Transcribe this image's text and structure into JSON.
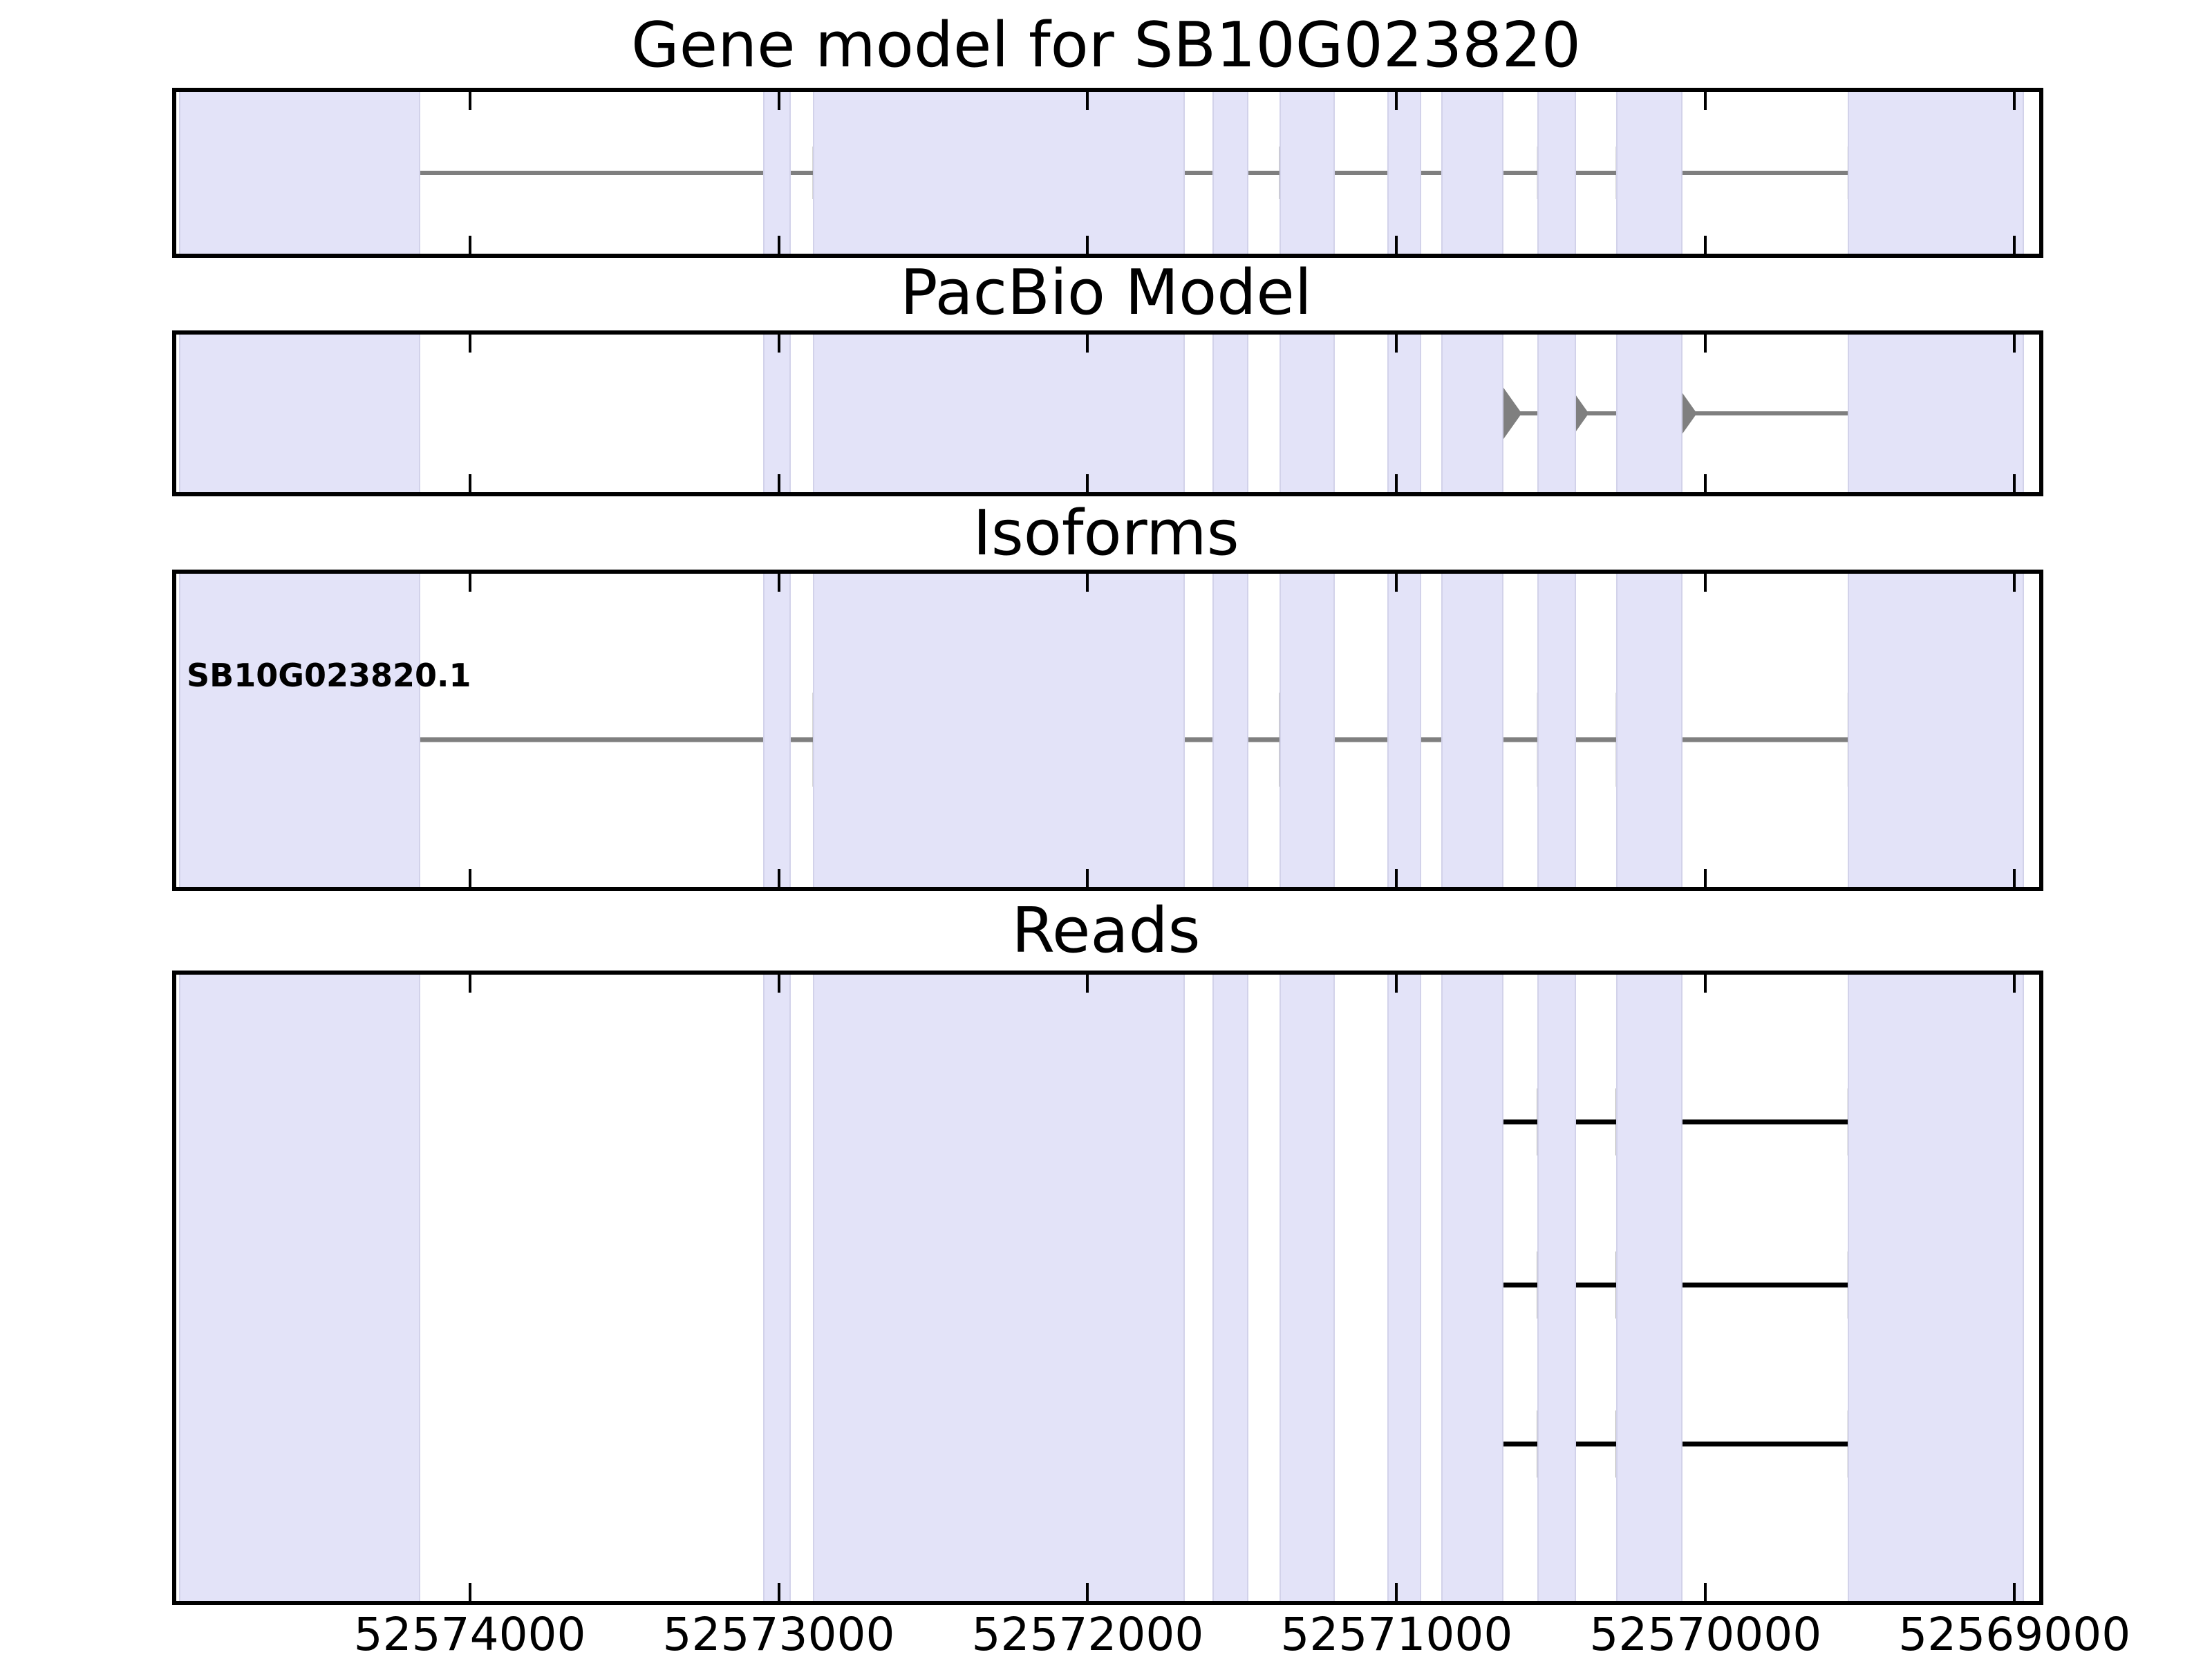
{
  "figure": {
    "background": "#ffffff"
  },
  "titles": {
    "gene_model": "Gene model for SB10G023820",
    "pacbio": "PacBio Model",
    "isoforms": "Isoforms",
    "reads": "Reads"
  },
  "colors": {
    "model_fill": "#7f7f7f",
    "intron_line": "#7f7f7f",
    "read_fill": "#000000",
    "highlight_band": "#e3e3f8",
    "highlight_band_edge": "#d2d2ea",
    "axis_line": "#000000",
    "text": "#000000"
  },
  "chart_data": {
    "type": "genome-tracks",
    "title": "Gene model for SB10G023820",
    "gene_id": "SB10G023820",
    "x_axis": {
      "unit": "bp",
      "direction": "reversed",
      "xlim": [
        52574950,
        52568920
      ],
      "ticks": [
        52574000,
        52573000,
        52572000,
        52571000,
        52570000,
        52569000
      ],
      "tick_labels": [
        "52574000",
        "52573000",
        "52572000",
        "52571000",
        "52570000",
        "52569000"
      ],
      "grid": false
    },
    "highlight_regions": [
      [
        52574940,
        52574160
      ],
      [
        52573050,
        52572960
      ],
      [
        52572890,
        52571685
      ],
      [
        52571595,
        52571480
      ],
      [
        52571380,
        52571200
      ],
      [
        52571030,
        52570920
      ],
      [
        52570855,
        52570655
      ],
      [
        52570545,
        52570420
      ],
      [
        52570290,
        52570075
      ],
      [
        52569540,
        52568970
      ]
    ],
    "tracks": [
      {
        "name": "Gene model for SB10G023820",
        "style": "arrow-model",
        "strand": "right",
        "exons": [
          [
            52574940,
            52574160
          ],
          [
            52573050,
            52572960
          ],
          [
            52572890,
            52571685
          ],
          [
            52571595,
            52571480
          ],
          [
            52571380,
            52571200
          ],
          [
            52571030,
            52570920
          ],
          [
            52570855,
            52570655
          ],
          [
            52570545,
            52570420
          ],
          [
            52570290,
            52570075
          ],
          [
            52569540,
            52568970
          ]
        ]
      },
      {
        "name": "PacBio Model",
        "style": "arrow-model",
        "strand": "right",
        "exons": [
          [
            52570800,
            52570595
          ],
          [
            52570500,
            52570378
          ],
          [
            52570240,
            52570028
          ],
          [
            52569480,
            52568970
          ]
        ]
      },
      {
        "name": "Isoforms",
        "style": "arrow-model",
        "strand": "right",
        "isoform_label": "SB10G023820.1",
        "exons": [
          [
            52574940,
            52574160
          ],
          [
            52573050,
            52572960
          ],
          [
            52572890,
            52571685
          ],
          [
            52571595,
            52571480
          ],
          [
            52571380,
            52571200
          ],
          [
            52571030,
            52570920
          ],
          [
            52570855,
            52570655
          ],
          [
            52570545,
            52570420
          ],
          [
            52570290,
            52570075
          ],
          [
            52569540,
            52568970
          ]
        ]
      },
      {
        "name": "Reads",
        "style": "read-blocks",
        "reads": [
          {
            "blocks": [
              [
                52570855,
                52570655
              ],
              [
                52570545,
                52570420
              ],
              [
                52570290,
                52570075
              ],
              [
                52569540,
                52568970
              ]
            ]
          },
          {
            "blocks": [
              [
                52570820,
                52570655
              ],
              [
                52570545,
                52570420
              ],
              [
                52570290,
                52570075
              ],
              [
                52569540,
                52568970
              ]
            ]
          },
          {
            "blocks": [
              [
                52570820,
                52570655
              ],
              [
                52570545,
                52570420
              ],
              [
                52570290,
                52570075
              ],
              [
                52569540,
                52568970
              ]
            ]
          }
        ]
      }
    ]
  }
}
